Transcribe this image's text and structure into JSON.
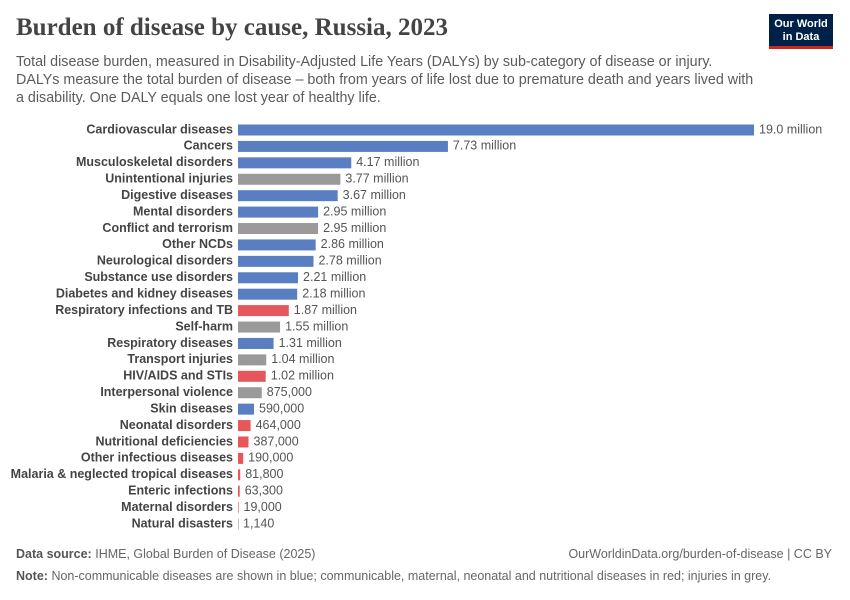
{
  "chart_data": {
    "type": "bar",
    "title": "Burden of disease by cause, Russia, 2023",
    "subtitle": "Total disease burden, measured in Disability-Adjusted Life Years (DALYs) by sub-category of disease or injury. DALYs measure the total burden of disease – both from years of life lost due to premature death and years lived with a disability. One DALY equals one lost year of healthy life.",
    "logo": [
      "Our World",
      "in Data"
    ],
    "source_label": "Data source:",
    "source": "IHME, Global Burden of Disease (2025)",
    "url": "OurWorldinData.org/burden-of-disease | CC BY",
    "note_label": "Note:",
    "note": "Non-communicable diseases are shown in blue; communicable, maternal, neonatal and nutritional diseases in red; injuries in grey.",
    "categories": [
      "Cardiovascular diseases",
      "Cancers",
      "Musculoskeletal disorders",
      "Unintentional injuries",
      "Digestive diseases",
      "Mental disorders",
      "Conflict and terrorism",
      "Other NCDs",
      "Neurological disorders",
      "Substance use disorders",
      "Diabetes and kidney diseases",
      "Respiratory infections and TB",
      "Self-harm",
      "Respiratory diseases",
      "Transport injuries",
      "HIV/AIDS and STIs",
      "Interpersonal violence",
      "Skin diseases",
      "Neonatal disorders",
      "Nutritional deficiencies",
      "Other infectious diseases",
      "Malaria & neglected tropical diseases",
      "Enteric infections",
      "Maternal disorders",
      "Natural disasters"
    ],
    "values": [
      19000000,
      7730000,
      4170000,
      3770000,
      3670000,
      2950000,
      2950000,
      2860000,
      2780000,
      2210000,
      2180000,
      1870000,
      1550000,
      1310000,
      1040000,
      1020000,
      875000,
      590000,
      464000,
      387000,
      190000,
      81800,
      63300,
      19000,
      1140
    ],
    "value_labels": [
      "19.0 million",
      "7.73 million",
      "4.17 million",
      "3.77 million",
      "3.67 million",
      "2.95 million",
      "2.95 million",
      "2.86 million",
      "2.78 million",
      "2.21 million",
      "2.18 million",
      "1.87 million",
      "1.55 million",
      "1.31 million",
      "1.04 million",
      "1.02 million",
      "875,000",
      "590,000",
      "464,000",
      "387,000",
      "190,000",
      "81,800",
      "63,300",
      "19,000",
      "1,140"
    ],
    "colors": [
      "#5a7ec2",
      "#5a7ec2",
      "#5a7ec2",
      "#9a9a9a",
      "#5a7ec2",
      "#5a7ec2",
      "#9a9a9a",
      "#5a7ec2",
      "#5a7ec2",
      "#5a7ec2",
      "#5a7ec2",
      "#e5575a",
      "#9a9a9a",
      "#5a7ec2",
      "#9a9a9a",
      "#e5575a",
      "#9a9a9a",
      "#5a7ec2",
      "#e5575a",
      "#e5575a",
      "#e5575a",
      "#e5575a",
      "#e5575a",
      "#e5575a",
      "#9a9a9a"
    ]
  }
}
